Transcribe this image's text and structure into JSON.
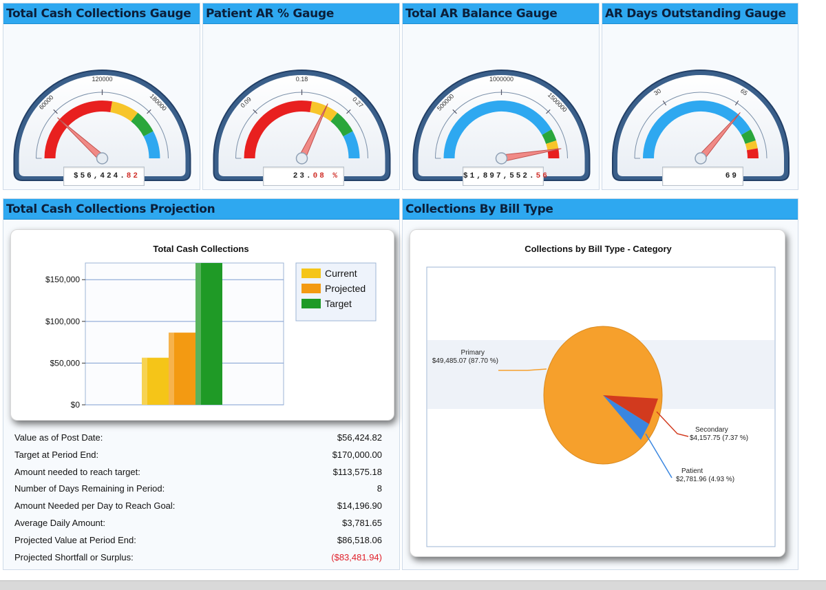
{
  "gauges": [
    {
      "title": "Total Cash Collections Gauge",
      "ticks": [
        "60000",
        "120000",
        "180000"
      ],
      "readout_main": "$56,424.",
      "readout_decimal": "82",
      "value": 56424.82,
      "colors": [
        "#e8201f",
        "#f7c52a",
        "#2aa63b",
        "#2ea8f0"
      ]
    },
    {
      "title": "Patient AR % Gauge",
      "ticks": [
        "0.09",
        "0.18",
        "0.27"
      ],
      "readout_main": "23.",
      "readout_decimal": "08 %",
      "value": 23.08,
      "colors": [
        "#e8201f",
        "#f7c52a",
        "#2aa63b",
        "#2ea8f0"
      ]
    },
    {
      "title": "Total AR Balance Gauge",
      "ticks": [
        "500000",
        "1000000",
        "1500000"
      ],
      "readout_main": "$1,897,552.",
      "readout_decimal": "56",
      "value": 1897552.56,
      "colors": [
        "#2ea8f0",
        "#2aa63b",
        "#f7c52a",
        "#e8201f"
      ]
    },
    {
      "title": "AR Days Outstanding Gauge",
      "ticks": [
        "30",
        "65"
      ],
      "readout_main": "69",
      "readout_decimal": "",
      "value": 69,
      "colors": [
        "#2ea8f0",
        "#2aa63b",
        "#f7c52a",
        "#e8201f"
      ]
    }
  ],
  "projection_panel": {
    "title": "Total Cash Collections Projection",
    "stats": [
      {
        "label": "Value as of Post Date:",
        "value": "$56,424.82",
        "negative": false
      },
      {
        "label": "Target at Period End:",
        "value": "$170,000.00",
        "negative": false
      },
      {
        "label": "Amount needed to reach target:",
        "value": "$113,575.18",
        "negative": false
      },
      {
        "label": "Number of Days Remaining in Period:",
        "value": "8",
        "negative": false
      },
      {
        "label": "Amount Needed per Day to Reach Goal:",
        "value": "$14,196.90",
        "negative": false
      },
      {
        "label": "Average Daily Amount:",
        "value": "$3,781.65",
        "negative": false
      },
      {
        "label": "Projected Value at Period End:",
        "value": "$86,518.06",
        "negative": false
      },
      {
        "label": "Projected Shortfall or Surplus:",
        "value": "($83,481.94)",
        "negative": true
      }
    ]
  },
  "billtype_panel": {
    "title": "Collections By Bill Type"
  },
  "chart_data": [
    {
      "type": "bar",
      "title": "Total Cash Collections",
      "yticks": [
        "$0",
        "$50,000",
        "$100,000",
        "$150,000"
      ],
      "ylim": [
        0,
        170000
      ],
      "series": [
        {
          "name": "Current",
          "value": 56424.82,
          "color": "#f5c518"
        },
        {
          "name": "Projected",
          "value": 86518.06,
          "color": "#f39a12"
        },
        {
          "name": "Target",
          "value": 170000,
          "color": "#1f9a26"
        }
      ],
      "legend": "top-right"
    },
    {
      "type": "pie",
      "title": "Collections by Bill Type - Category",
      "slices": [
        {
          "name": "Primary",
          "value": "$49,485.07",
          "percent": "(87.70 %)",
          "share": 87.7,
          "color": "#f6a02c"
        },
        {
          "name": "Secondary",
          "value": "$4,157.75",
          "percent": "(7.37 %)",
          "share": 7.37,
          "color": "#d23a1e"
        },
        {
          "name": "Patient",
          "value": "$2,781.96",
          "percent": "(4.93 %)",
          "share": 4.93,
          "color": "#3a86e0"
        }
      ]
    }
  ]
}
